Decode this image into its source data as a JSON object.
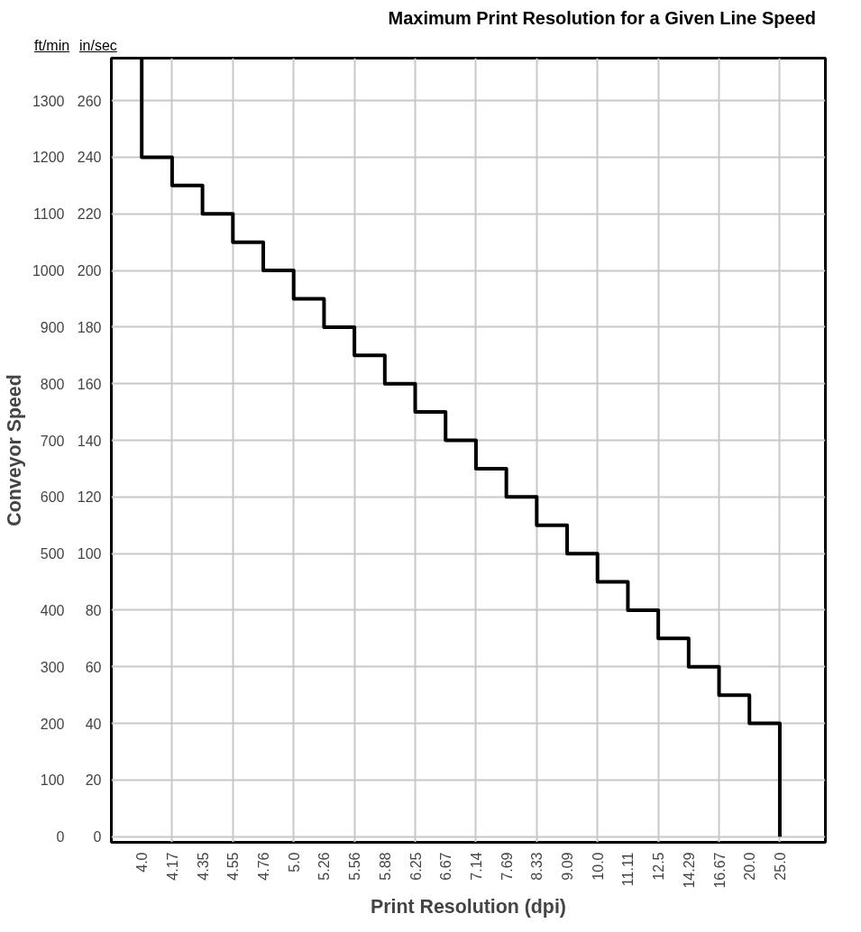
{
  "chart_data": {
    "type": "line",
    "title": "Maximum Print Resolution for a Given Line Speed",
    "xlabel": "Print Resolution (dpi)",
    "ylabel": "Conveyor Speed",
    "annotations": [
      "ft/min",
      "in/sec"
    ],
    "categories": [
      "4.0",
      "4.17",
      "4.35",
      "4.55",
      "4.76",
      "5.0",
      "5.26",
      "5.56",
      "5.88",
      "6.25",
      "6.67",
      "7.14",
      "7.69",
      "8.33",
      "9.09",
      "10.0",
      "11.11",
      "12.5",
      "14.29",
      "16.67",
      "20.0",
      "25.0"
    ],
    "series": [
      {
        "color": "#000000",
        "x": [
          "4.0",
          "4.0",
          "4.17",
          "4.17",
          "4.35",
          "4.35",
          "4.55",
          "4.55",
          "4.76",
          "4.76",
          "5.0",
          "5.0",
          "5.26",
          "5.26",
          "5.56",
          "5.56",
          "5.88",
          "5.88",
          "6.25",
          "6.25",
          "6.67",
          "6.67",
          "7.14",
          "7.14",
          "7.69",
          "7.69",
          "8.33",
          "8.33",
          "9.09",
          "9.09",
          "10.0",
          "10.0",
          "11.11",
          "11.11",
          "12.5",
          "12.5",
          "14.29",
          "14.29",
          "16.67",
          "16.67",
          "20.0",
          "20.0",
          "25.0",
          "25.0"
        ],
        "values": [
          1375,
          1200,
          1200,
          1150,
          1150,
          1100,
          1100,
          1050,
          1050,
          1000,
          1000,
          950,
          950,
          900,
          900,
          850,
          850,
          800,
          800,
          750,
          750,
          700,
          700,
          650,
          650,
          600,
          600,
          550,
          550,
          500,
          500,
          450,
          450,
          400,
          400,
          350,
          350,
          300,
          300,
          250,
          250,
          200,
          200,
          0
        ]
      }
    ],
    "ylim": [
      -10,
      1375
    ],
    "yticks": [
      0,
      100,
      200,
      300,
      400,
      500,
      600,
      700,
      800,
      900,
      1000,
      1100,
      1200,
      1300
    ],
    "y2lim": [
      -2,
      275
    ],
    "y2ticks": [
      0,
      20,
      40,
      60,
      80,
      100,
      120,
      140,
      160,
      180,
      200,
      220,
      240,
      260
    ],
    "grid": true,
    "line_style": "solid"
  }
}
